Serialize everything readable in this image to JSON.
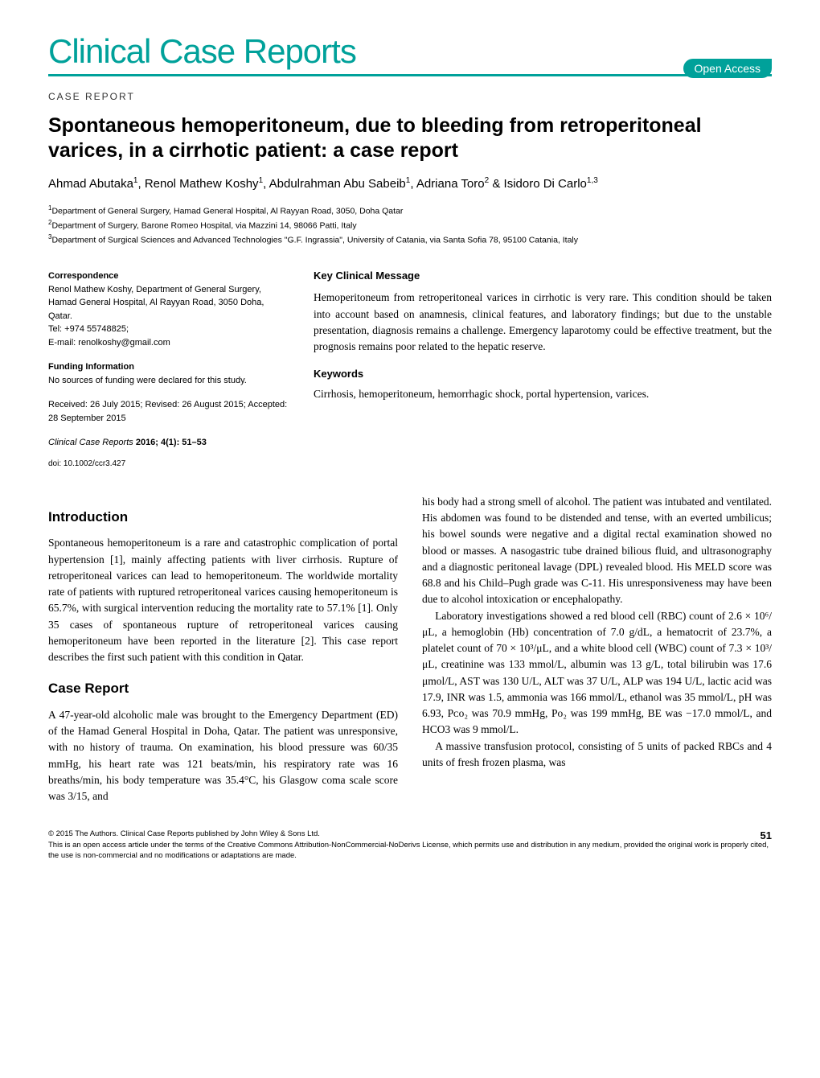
{
  "journal": {
    "title": "Clinical Case Reports",
    "open_access_label": "Open Access",
    "title_color": "#00a19a"
  },
  "article": {
    "type_label": "CASE REPORT",
    "title": "Spontaneous hemoperitoneum, due to bleeding from retroperitoneal varices, in a cirrhotic patient: a case report",
    "authors_html": "Ahmad Abutaka<sup>1</sup>, Renol Mathew Koshy<sup>1</sup>, Abdulrahman Abu Sabeib<sup>1</sup>, Adriana Toro<sup>2</sup> & Isidoro Di Carlo<sup>1,3</sup>",
    "affiliations": [
      "Department of General Surgery, Hamad General Hospital, Al Rayyan Road, 3050, Doha Qatar",
      "Department of Surgery, Barone Romeo Hospital, via Mazzini 14, 98066 Patti, Italy",
      "Department of Surgical Sciences and Advanced Technologies \"G.F. Ingrassia\", University of Catania, via Santa Sofia 78, 95100 Catania, Italy"
    ]
  },
  "meta": {
    "correspondence_heading": "Correspondence",
    "correspondence_text": "Renol Mathew Koshy, Department of General Surgery, Hamad General Hospital, Al Rayyan Road, 3050 Doha, Qatar.\nTel: +974 55748825;\nE-mail: renolkoshy@gmail.com",
    "funding_heading": "Funding Information",
    "funding_text": "No sources of funding were declared for this study.",
    "dates_text": "Received: 26 July 2015; Revised: 26 August 2015; Accepted: 28 September 2015",
    "journal_ref_italic": "Clinical Case Reports",
    "journal_ref_year": "2016; 4(1): 51–53",
    "doi": "doi: 10.1002/ccr3.427"
  },
  "abstract": {
    "heading": "Key Clinical Message",
    "text": "Hemoperitoneum from retroperitoneal varices in cirrhotic is very rare. This condition should be taken into account based on anamnesis, clinical features, and laboratory findings; but due to the unstable presentation, diagnosis remains a challenge. Emergency laparotomy could be effective treatment, but the prognosis remains poor related to the hepatic reserve.",
    "keywords_heading": "Keywords",
    "keywords_text": "Cirrhosis, hemoperitoneum, hemorrhagic shock, portal hypertension, varices."
  },
  "body": {
    "intro_heading": "Introduction",
    "intro_text": "Spontaneous hemoperitoneum is a rare and catastrophic complication of portal hypertension [1], mainly affecting patients with liver cirrhosis. Rupture of retroperitoneal varices can lead to hemoperitoneum. The worldwide mortality rate of patients with ruptured retroperitoneal varices causing hemoperitoneum is 65.7%, with surgical intervention reducing the mortality rate to 57.1% [1]. Only 35 cases of spontaneous rupture of retroperitoneal varices causing hemoperitoneum have been reported in the literature [2]. This case report describes the first such patient with this condition in Qatar.",
    "case_heading": "Case Report",
    "case_p1": "A 47-year-old alcoholic male was brought to the Emergency Department (ED) of the Hamad General Hospital in Doha, Qatar. The patient was unresponsive, with no history of trauma. On examination, his blood pressure was 60/35 mmHg, his heart rate was 121 beats/min, his respiratory rate was 16 breaths/min, his body temperature was 35.4°C, his Glasgow coma scale score was 3/15, and",
    "case_p2": "his body had a strong smell of alcohol. The patient was intubated and ventilated. His abdomen was found to be distended and tense, with an everted umbilicus; his bowel sounds were negative and a digital rectal examination showed no blood or masses. A nasogastric tube drained bilious fluid, and ultrasonography and a diagnostic peritoneal lavage (DPL) revealed blood. His MELD score was 68.8 and his Child–Pugh grade was C-11. His unresponsiveness may have been due to alcohol intoxication or encephalopathy.",
    "case_p3": "Laboratory investigations showed a red blood cell (RBC) count of 2.6 × 10⁶/μL, a hemoglobin (Hb) concentration of 7.0 g/dL, a hematocrit of 23.7%, a platelet count of 70 × 10³/μL, and a white blood cell (WBC) count of 7.3 × 10³/μL, creatinine was 133 mmol/L, albumin was 13 g/L, total bilirubin was 17.6 μmol/L, AST was 130 U/L, ALT was 37 U/L, ALP was 194 U/L, lactic acid was 17.9, INR was 1.5, ammonia was 166 mmol/L, ethanol was 35 mmol/L, pH was 6.93, Pᴄᴏ₂ was 70.9 mmHg, Pᴏ₂ was 199 mmHg, BE was −17.0 mmol/L, and HCO3 was 9 mmol/L.",
    "case_p4": "A massive transfusion protocol, consisting of 5 units of packed RBCs and 4 units of fresh frozen plasma, was"
  },
  "footer": {
    "copyright": "© 2015 The Authors. Clinical Case Reports published by John Wiley & Sons Ltd.",
    "license": "This is an open access article under the terms of the Creative Commons Attribution-NonCommercial-NoDerivs License, which permits use and distribution in any medium, provided the original work is properly cited, the use is non-commercial and no modifications or adaptations are made.",
    "page_number": "51"
  }
}
